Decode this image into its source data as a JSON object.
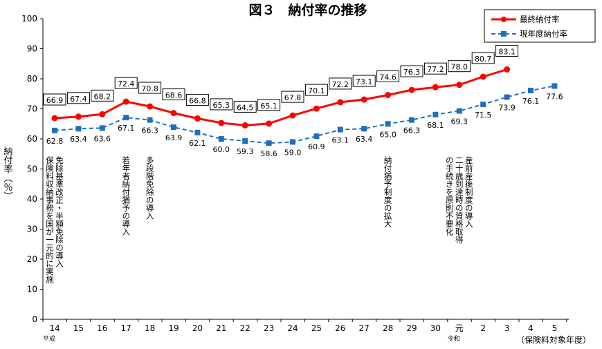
{
  "chart_data": {
    "type": "line",
    "title": "図３　納付率の推移",
    "ylabel": "納付率（％）",
    "xlabel": "（保険料対象年度）",
    "ylim": [
      0,
      100
    ],
    "yticks": [
      0,
      10,
      20,
      30,
      40,
      50,
      60,
      70,
      80,
      90,
      100
    ],
    "categories": [
      "14",
      "15",
      "16",
      "17",
      "18",
      "19",
      "20",
      "21",
      "22",
      "23",
      "24",
      "25",
      "26",
      "27",
      "28",
      "29",
      "30",
      "元",
      "2",
      "3",
      "4",
      "5"
    ],
    "era_labels": [
      {
        "text": "平成",
        "index": 0
      },
      {
        "text": "令和",
        "index": 17
      }
    ],
    "series": [
      {
        "name": "最終納付率",
        "color": "#ff0000",
        "values": [
          66.9,
          67.4,
          68.2,
          72.4,
          70.8,
          68.6,
          66.8,
          65.3,
          64.5,
          65.1,
          67.8,
          70.1,
          72.2,
          73.1,
          74.6,
          76.3,
          77.2,
          78.0,
          80.7,
          83.1,
          null,
          null
        ]
      },
      {
        "name": "現年度納付率",
        "color": "#1f6fc0",
        "values": [
          62.8,
          63.4,
          63.6,
          67.1,
          66.3,
          63.9,
          62.1,
          60.0,
          59.3,
          58.6,
          59.0,
          60.9,
          63.1,
          63.4,
          65.0,
          66.3,
          68.1,
          69.3,
          71.5,
          73.9,
          76.1,
          77.6
        ]
      }
    ],
    "legend_placement": "top-right",
    "grid": false,
    "annotations": [
      {
        "index": 0,
        "columns": [
          "免除基準改正・半額免除の導入",
          "保険料収納事務を国が一元的に実施"
        ]
      },
      {
        "index": 3,
        "columns": [
          "若年者納付猶予の導入"
        ]
      },
      {
        "index": 4,
        "columns": [
          "多段階免除の導入"
        ]
      },
      {
        "index": 14,
        "columns": [
          "納付猶予制度の拡大"
        ]
      },
      {
        "index": 17,
        "columns": [
          "産前産後制度の導入",
          "二十歳到達時の資格取得",
          "の手続きを原則不要化"
        ]
      }
    ]
  },
  "colors": {
    "final": "#ff0000",
    "current": "#1f6fc0"
  }
}
